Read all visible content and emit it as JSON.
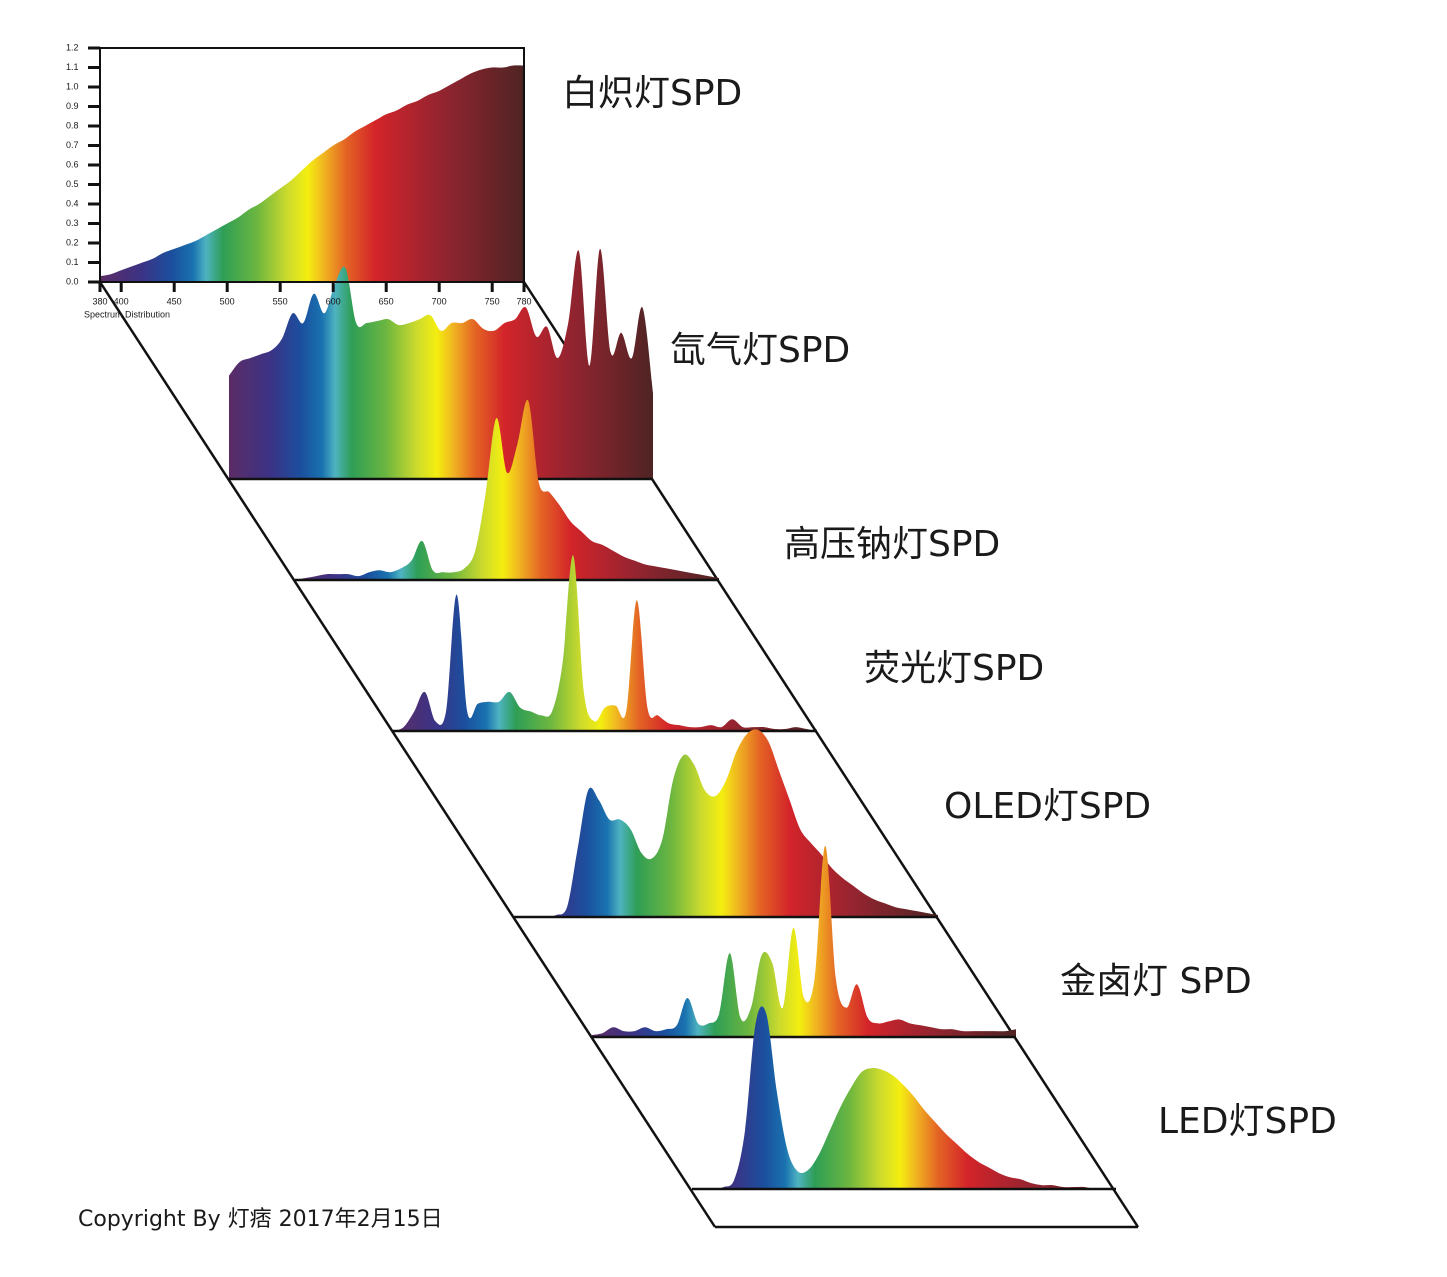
{
  "chart_data": {
    "type": "area",
    "x": [
      380,
      390,
      400,
      410,
      420,
      430,
      440,
      450,
      460,
      470,
      480,
      490,
      500,
      510,
      520,
      530,
      540,
      550,
      560,
      570,
      580,
      590,
      600,
      610,
      620,
      630,
      640,
      650,
      660,
      670,
      680,
      690,
      700,
      710,
      720,
      730,
      740,
      750,
      760,
      770,
      780
    ],
    "xlim": [
      380,
      780
    ],
    "ylim": [
      0,
      1.2
    ],
    "xticks": [
      380,
      400,
      450,
      500,
      550,
      600,
      650,
      700,
      750,
      780
    ],
    "yticks": [
      {
        "value": 0,
        "label": "0.0"
      },
      0.1,
      0.2,
      0.3,
      0.4,
      0.5,
      0.6,
      0.7,
      0.8,
      0.9,
      {
        "value": 1,
        "label": "1.0"
      },
      1.1,
      1.2
    ],
    "xlabel": "Spectrum Distribution",
    "series": [
      {
        "name": "白炽灯SPD",
        "values": [
          0.03,
          0.04,
          0.06,
          0.08,
          0.1,
          0.12,
          0.15,
          0.17,
          0.19,
          0.21,
          0.24,
          0.27,
          0.3,
          0.33,
          0.37,
          0.4,
          0.44,
          0.48,
          0.52,
          0.57,
          0.62,
          0.66,
          0.7,
          0.73,
          0.77,
          0.8,
          0.83,
          0.86,
          0.88,
          0.91,
          0.93,
          0.96,
          0.98,
          1.01,
          1.04,
          1.07,
          1.09,
          1.1,
          1.1,
          1.11,
          1.11
        ]
      },
      {
        "name": "氙气灯SPD",
        "values": [
          0.53,
          0.6,
          0.62,
          0.64,
          0.66,
          0.72,
          0.85,
          0.8,
          0.95,
          0.85,
          1.0,
          1.08,
          0.8,
          0.8,
          0.81,
          0.82,
          0.79,
          0.8,
          0.82,
          0.84,
          0.76,
          0.8,
          0.8,
          0.82,
          0.77,
          0.76,
          0.8,
          0.82,
          0.88,
          0.73,
          0.78,
          0.62,
          0.8,
          1.17,
          0.58,
          1.18,
          0.65,
          0.75,
          0.62,
          0.88,
          0.44
        ]
      },
      {
        "name": "高压钠灯SPD",
        "values": [
          0,
          0.01,
          0.02,
          0.03,
          0.03,
          0.03,
          0.02,
          0.04,
          0.05,
          0.04,
          0.06,
          0.1,
          0.2,
          0.05,
          0.04,
          0.04,
          0.06,
          0.15,
          0.45,
          0.83,
          0.55,
          0.7,
          0.92,
          0.5,
          0.45,
          0.38,
          0.3,
          0.25,
          0.2,
          0.18,
          0.15,
          0.12,
          0.1,
          0.08,
          0.07,
          0.06,
          0.05,
          0.04,
          0.03,
          0.02,
          0.01
        ]
      },
      {
        "name": "荧光灯SPD",
        "values": [
          0,
          0.02,
          0.1,
          0.2,
          0.05,
          0.1,
          0.7,
          0.1,
          0.14,
          0.15,
          0.15,
          0.2,
          0.12,
          0.1,
          0.08,
          0.1,
          0.35,
          0.9,
          0.2,
          0.05,
          0.12,
          0.13,
          0.1,
          0.67,
          0.12,
          0.08,
          0.04,
          0.03,
          0.02,
          0.02,
          0.03,
          0.02,
          0.06,
          0.02,
          0.02,
          0.02,
          0.01,
          0.01,
          0.02,
          0.01,
          0
        ]
      },
      {
        "name": "OLED灯SPD",
        "values": [
          0,
          0,
          0,
          0,
          0.01,
          0.05,
          0.35,
          0.65,
          0.6,
          0.5,
          0.5,
          0.45,
          0.33,
          0.3,
          0.4,
          0.7,
          0.83,
          0.78,
          0.65,
          0.62,
          0.7,
          0.85,
          0.94,
          0.96,
          0.9,
          0.75,
          0.6,
          0.45,
          0.38,
          0.32,
          0.25,
          0.2,
          0.16,
          0.12,
          0.09,
          0.07,
          0.05,
          0.04,
          0.03,
          0.02,
          0.01
        ]
      },
      {
        "name": "金卤灯 SPD",
        "values": [
          0.01,
          0.02,
          0.05,
          0.03,
          0.03,
          0.05,
          0.03,
          0.04,
          0.06,
          0.2,
          0.07,
          0.07,
          0.12,
          0.43,
          0.1,
          0.15,
          0.42,
          0.38,
          0.15,
          0.56,
          0.2,
          0.3,
          0.98,
          0.3,
          0.15,
          0.27,
          0.1,
          0.07,
          0.08,
          0.09,
          0.07,
          0.06,
          0.05,
          0.04,
          0.04,
          0.03,
          0.03,
          0.03,
          0.03,
          0.03,
          0.04
        ]
      },
      {
        "name": "LED灯SPD",
        "values": [
          0,
          0,
          0,
          0.01,
          0.05,
          0.3,
          0.85,
          0.9,
          0.5,
          0.2,
          0.09,
          0.1,
          0.18,
          0.3,
          0.42,
          0.52,
          0.6,
          0.62,
          0.61,
          0.58,
          0.53,
          0.47,
          0.4,
          0.34,
          0.28,
          0.23,
          0.18,
          0.14,
          0.11,
          0.08,
          0.06,
          0.05,
          0.03,
          0.02,
          0.02,
          0.01,
          0.01,
          0.01,
          0,
          0,
          0
        ]
      }
    ]
  },
  "copyright": "Copyright By 灯痞 2017年2月15日"
}
